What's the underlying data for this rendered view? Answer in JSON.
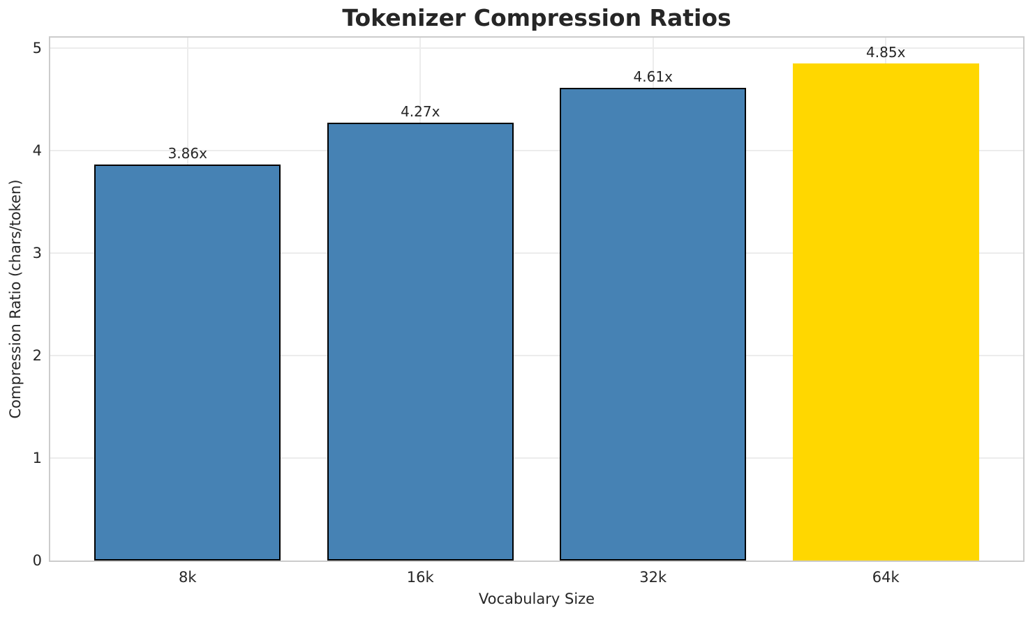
{
  "chart_data": {
    "type": "bar",
    "title": "Tokenizer Compression Ratios",
    "xlabel": "Vocabulary Size",
    "ylabel": "Compression Ratio (chars/token)",
    "categories": [
      "8k",
      "16k",
      "32k",
      "64k"
    ],
    "values": [
      3.86,
      4.27,
      4.61,
      4.85
    ],
    "bar_labels": [
      "3.86x",
      "4.27x",
      "4.61x",
      "4.85x"
    ],
    "bar_fill_colors": [
      "#4682B4",
      "#4682B4",
      "#4682B4",
      "#FFD700"
    ],
    "bar_edge_colors": [
      "#000000",
      "#000000",
      "#000000",
      "#FFD700"
    ],
    "ytick_labels": [
      "0",
      "1",
      "2",
      "3",
      "4",
      "5"
    ],
    "yticks": [
      0,
      1,
      2,
      3,
      4,
      5
    ],
    "ylim": [
      0,
      5.1
    ],
    "grid": true,
    "grid_color": "#ececec",
    "spine_color": "#cccccc",
    "text_color": "#262626",
    "legend": "none"
  }
}
